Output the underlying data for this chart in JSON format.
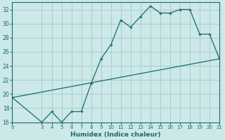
{
  "xlabel": "Humidex (Indice chaleur)",
  "bg_color": "#cce8e8",
  "grid_color": "#aacece",
  "line_color": "#1a6b6b",
  "xlim": [
    0,
    21
  ],
  "ylim": [
    16,
    33
  ],
  "xticks": [
    0,
    3,
    4,
    5,
    6,
    7,
    8,
    9,
    10,
    11,
    12,
    13,
    14,
    15,
    16,
    17,
    18,
    19,
    20,
    21
  ],
  "yticks": [
    16,
    18,
    20,
    22,
    24,
    26,
    28,
    30,
    32
  ],
  "curve1_x": [
    0,
    3,
    4,
    5,
    6,
    7,
    8,
    9,
    10,
    11,
    12,
    13,
    14,
    15,
    16,
    17,
    18,
    19,
    20,
    21
  ],
  "curve1_y": [
    19.5,
    16.0,
    17.5,
    16.0,
    17.5,
    17.5,
    21.5,
    25.0,
    27.0,
    30.5,
    29.5,
    31.0,
    32.5,
    31.5,
    31.5,
    32.0,
    32.0,
    28.5,
    28.5,
    25.0
  ],
  "curve2_x": [
    0,
    21
  ],
  "curve2_y": [
    19.5,
    25.0
  ],
  "marker": "+"
}
